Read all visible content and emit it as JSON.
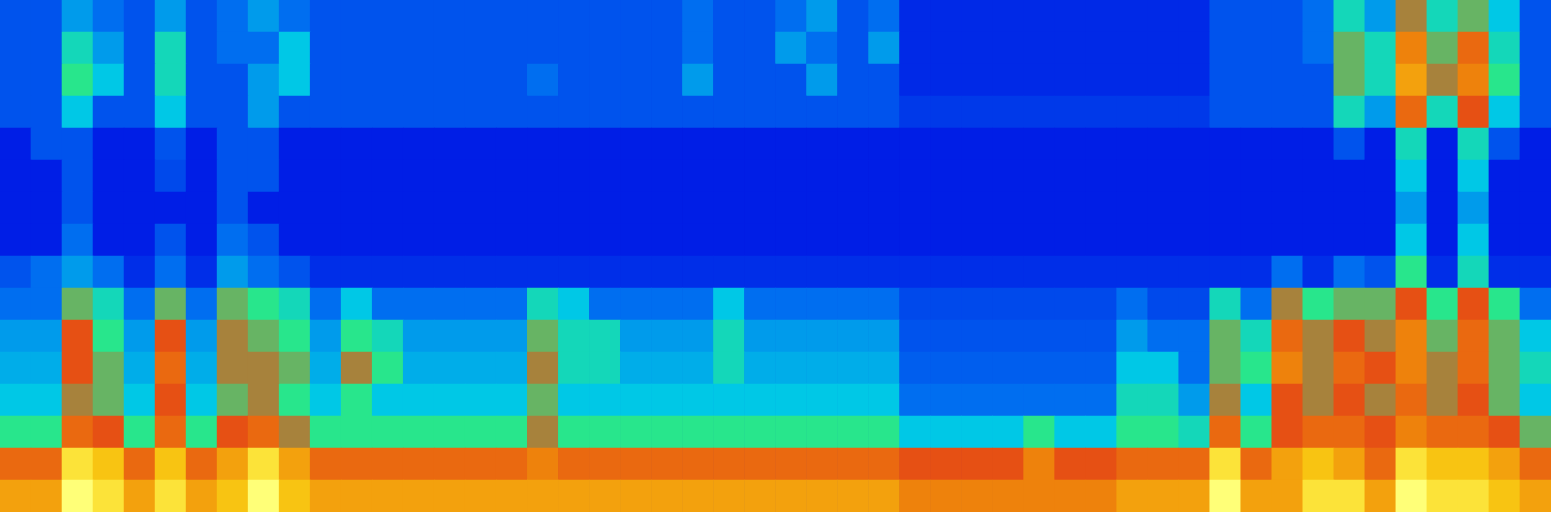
{
  "chart_data": {
    "type": "heatmap",
    "tick_labels": false,
    "grid": false,
    "zlim": [
      0,
      10
    ],
    "cells": [
      [
        3,
        3,
        4,
        3.5,
        3,
        4,
        3,
        3.5,
        4,
        3.5,
        3,
        3,
        3,
        3,
        3,
        3,
        3,
        3,
        3,
        3,
        3,
        3,
        3.5,
        3,
        3,
        3.5,
        4,
        3,
        3.5,
        2.2,
        2.2,
        2.2,
        2.2,
        2.2,
        2.2,
        2.2,
        2.2,
        2.2,
        2.2,
        3,
        3,
        3,
        3.5,
        5,
        4,
        6.5,
        5,
        6,
        4.5,
        3
      ],
      [
        3,
        3,
        5,
        4,
        3,
        5,
        3,
        3.5,
        3.5,
        4.5,
        3,
        3,
        3,
        3,
        3,
        3,
        3,
        3,
        3,
        3,
        3,
        3,
        3.5,
        3,
        3,
        4,
        3.5,
        3,
        4,
        2.2,
        2.2,
        2.2,
        2.2,
        2.2,
        2.2,
        2.2,
        2.2,
        2.2,
        2.2,
        3,
        3,
        3,
        3.5,
        6,
        5,
        8,
        6,
        7.5,
        5,
        3
      ],
      [
        3,
        3,
        5.5,
        4.5,
        3,
        5,
        3,
        3,
        4,
        4.5,
        3,
        3,
        3,
        3,
        3,
        3,
        3,
        3.5,
        3,
        3,
        3,
        3,
        4,
        3,
        3,
        3,
        4,
        3,
        3,
        2.2,
        2.2,
        2.2,
        2.2,
        2.2,
        2.2,
        2.2,
        2.2,
        2.2,
        2.2,
        3,
        3,
        3,
        3,
        6,
        5,
        8.5,
        6.5,
        8,
        5.5,
        3
      ],
      [
        3,
        3,
        4.5,
        3,
        3,
        4.5,
        3,
        3,
        4,
        3,
        3,
        3,
        3,
        3,
        3,
        3,
        3,
        3,
        3,
        3,
        3,
        3,
        3,
        3,
        3,
        3,
        3,
        3,
        3,
        2.5,
        2.5,
        2.5,
        2.5,
        2.5,
        2.5,
        2.5,
        2.5,
        2.5,
        2.5,
        3,
        3,
        3,
        3,
        5,
        4,
        7.5,
        5,
        7,
        4.5,
        3
      ],
      [
        2,
        3,
        3,
        2,
        2,
        3,
        2,
        3,
        3,
        2,
        2,
        2,
        2,
        2,
        2,
        2,
        2,
        2,
        2,
        2,
        2,
        2,
        2,
        2,
        2,
        2,
        2,
        2,
        2,
        2,
        2,
        2,
        2,
        2,
        2,
        2,
        2,
        2,
        2,
        2,
        2,
        2,
        2,
        3,
        2,
        5,
        2,
        5,
        3,
        2
      ],
      [
        2,
        2,
        3,
        2,
        2,
        2.8,
        2,
        3,
        3,
        2,
        2,
        2,
        2,
        2,
        2,
        2,
        2,
        2,
        2,
        2,
        2,
        2,
        2,
        2,
        2,
        2,
        2,
        2,
        2,
        2,
        2,
        2,
        2,
        2,
        2,
        2,
        2,
        2,
        2,
        2,
        2,
        2,
        2,
        2,
        2,
        4.5,
        2,
        4.5,
        2,
        2
      ],
      [
        2,
        2,
        3,
        2,
        2,
        2,
        2,
        3,
        2,
        2,
        2,
        2,
        2,
        2,
        2,
        2,
        2,
        2,
        2,
        2,
        2,
        2,
        2,
        2,
        2,
        2,
        2,
        2,
        2,
        2,
        2,
        2,
        2,
        2,
        2,
        2,
        2,
        2,
        2,
        2,
        2,
        2,
        2,
        2,
        2,
        4,
        2,
        4,
        2,
        2
      ],
      [
        2,
        2,
        3.5,
        2,
        2,
        3,
        2,
        3.5,
        3,
        2,
        2,
        2,
        2,
        2,
        2,
        2,
        2,
        2,
        2,
        2,
        2,
        2,
        2,
        2,
        2,
        2,
        2,
        2,
        2,
        2,
        2,
        2,
        2,
        2,
        2,
        2,
        2,
        2,
        2,
        2,
        2,
        2,
        2,
        2,
        2,
        4.5,
        2,
        4.5,
        2,
        2
      ],
      [
        3,
        3.5,
        4,
        3.5,
        2.3,
        3.5,
        2.3,
        4,
        3.5,
        3,
        2.3,
        2.3,
        2.3,
        2.3,
        2.3,
        2.3,
        2.3,
        2.3,
        2.3,
        2.3,
        2.3,
        2.3,
        2.3,
        2.3,
        2.3,
        2.3,
        2.3,
        2.3,
        2.3,
        2.3,
        2.3,
        2.3,
        2.3,
        2.3,
        2.3,
        2.3,
        2.3,
        2.3,
        2.3,
        2.3,
        2.3,
        3.5,
        2.3,
        3.5,
        3,
        5.5,
        2.3,
        5,
        2.3,
        2.3
      ],
      [
        3.5,
        3.5,
        6,
        5,
        3.5,
        6,
        3.5,
        6,
        5.5,
        5,
        3.5,
        4.5,
        3.5,
        3.5,
        3.5,
        3.5,
        3.5,
        5,
        4.5,
        3.5,
        3.5,
        3.5,
        3.5,
        4.5,
        3.5,
        3.5,
        3.5,
        3.5,
        3.5,
        2.8,
        2.8,
        2.8,
        2.8,
        2.8,
        2.8,
        2.8,
        3.5,
        2.8,
        2.8,
        5,
        3.5,
        6.5,
        5.5,
        6,
        6,
        7,
        5.5,
        7,
        5.5,
        3.5
      ],
      [
        4,
        4,
        7,
        5.5,
        4,
        7,
        4,
        6.5,
        6,
        5.5,
        4,
        5.5,
        5,
        4,
        4,
        4,
        4,
        6,
        5,
        5,
        4,
        4,
        4,
        5,
        4,
        4,
        4,
        4,
        4,
        3,
        3,
        3,
        3,
        3,
        3,
        3,
        4,
        3.5,
        3.5,
        6,
        5,
        7.5,
        6.5,
        7,
        6.5,
        8,
        6,
        7.5,
        6,
        4.5
      ],
      [
        4.2,
        4.2,
        7,
        6,
        4.2,
        7.5,
        4.2,
        6.5,
        6.5,
        6,
        4.2,
        6.5,
        5.5,
        4.2,
        4.2,
        4.2,
        4.2,
        6.5,
        5,
        5,
        4.2,
        4.2,
        4.2,
        5,
        4.2,
        4.2,
        4.2,
        4.2,
        4.2,
        3.2,
        3.2,
        3.2,
        3.2,
        3.2,
        3.2,
        3.2,
        4.5,
        4.5,
        3.5,
        6,
        5.5,
        8,
        6.5,
        7.5,
        7,
        8,
        6.5,
        7.5,
        6,
        5
      ],
      [
        4.5,
        4.5,
        6.5,
        6,
        4.5,
        7,
        4.5,
        6,
        6.5,
        5.5,
        4.5,
        5.5,
        4.5,
        4.5,
        4.5,
        4.5,
        4.5,
        6,
        4.5,
        4.5,
        4.5,
        4.5,
        4.5,
        4.5,
        4.5,
        4.5,
        4.5,
        4.5,
        4.5,
        3.5,
        3.5,
        3.5,
        3.5,
        3.5,
        3.5,
        3.5,
        5,
        5,
        4,
        6.5,
        4.5,
        7,
        6.5,
        7,
        6.5,
        7.5,
        6.5,
        7,
        6,
        4.5
      ],
      [
        5.5,
        5.5,
        7.5,
        7,
        5.5,
        7.5,
        5.5,
        7,
        7.5,
        6.5,
        5.5,
        5.5,
        5.5,
        5.5,
        5.5,
        5.5,
        5.5,
        6.5,
        5.5,
        5.5,
        5.5,
        5.5,
        5.5,
        5.5,
        5.5,
        5.5,
        5.5,
        5.5,
        5.5,
        4.5,
        4.5,
        4.5,
        4.5,
        5.5,
        4.5,
        4.5,
        5.5,
        5.5,
        5,
        7.5,
        5.5,
        7,
        7.5,
        7.5,
        7,
        8,
        7.5,
        7.5,
        7,
        6
      ],
      [
        7.5,
        7.5,
        9.5,
        9,
        7.5,
        9,
        7.5,
        8.5,
        9.5,
        8.5,
        7.5,
        7.5,
        7.5,
        7.5,
        7.5,
        7.5,
        7.5,
        8,
        7.5,
        7.5,
        7.5,
        7.5,
        7.5,
        7.5,
        7.5,
        7.5,
        7.5,
        7.5,
        7.5,
        7,
        7,
        7,
        7,
        8,
        7,
        7,
        7.5,
        7.5,
        7.5,
        9.5,
        7.5,
        8.5,
        9,
        8.5,
        7.5,
        9.5,
        9,
        9,
        8.5,
        7.5
      ],
      [
        8.5,
        8.5,
        10,
        9.5,
        8.5,
        9.5,
        8.5,
        9,
        10,
        9,
        8.5,
        8.5,
        8.5,
        8.5,
        8.5,
        8.5,
        8.5,
        8.5,
        8.5,
        8.5,
        8.5,
        8.5,
        8.5,
        8.5,
        8.5,
        8.5,
        8.5,
        8.5,
        8.5,
        8,
        8,
        8,
        8,
        8,
        8,
        8,
        8.5,
        8.5,
        8.5,
        10,
        8.5,
        8.5,
        9.5,
        9.5,
        8.5,
        10,
        9.5,
        9.5,
        9,
        8.5
      ]
    ]
  }
}
